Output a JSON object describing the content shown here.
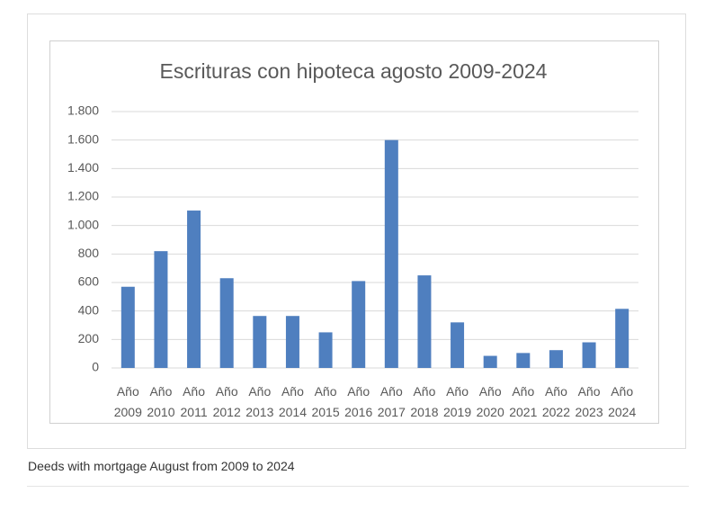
{
  "chart_data": {
    "type": "bar",
    "title": "Escrituras con hipoteca agosto 2009-2024",
    "categories": [
      "Año 2009",
      "Año 2010",
      "Año 2011",
      "Año 2012",
      "Año 2013",
      "Año 2014",
      "Año 2015",
      "Año 2016",
      "Año 2017",
      "Año 2018",
      "Año 2019",
      "Año 2020",
      "Año 2021",
      "Año 2022",
      "Año 2023",
      "Año 2024"
    ],
    "values": [
      570,
      820,
      1105,
      630,
      365,
      365,
      250,
      610,
      1600,
      650,
      320,
      85,
      105,
      125,
      180,
      415
    ],
    "color": "#4f7fbf",
    "ylim": [
      0,
      1800
    ],
    "yticks": [
      0,
      200,
      400,
      600,
      800,
      {
        "value": 1000,
        "label": "1.000"
      },
      {
        "value": 1200,
        "label": "1.200"
      },
      {
        "value": 1400,
        "label": "1.400"
      },
      {
        "value": 1600,
        "label": "1.600"
      },
      {
        "value": 1800,
        "label": "1.800"
      }
    ],
    "grid": true
  },
  "caption": "Deeds with mortgage August from 2009 to 2024"
}
